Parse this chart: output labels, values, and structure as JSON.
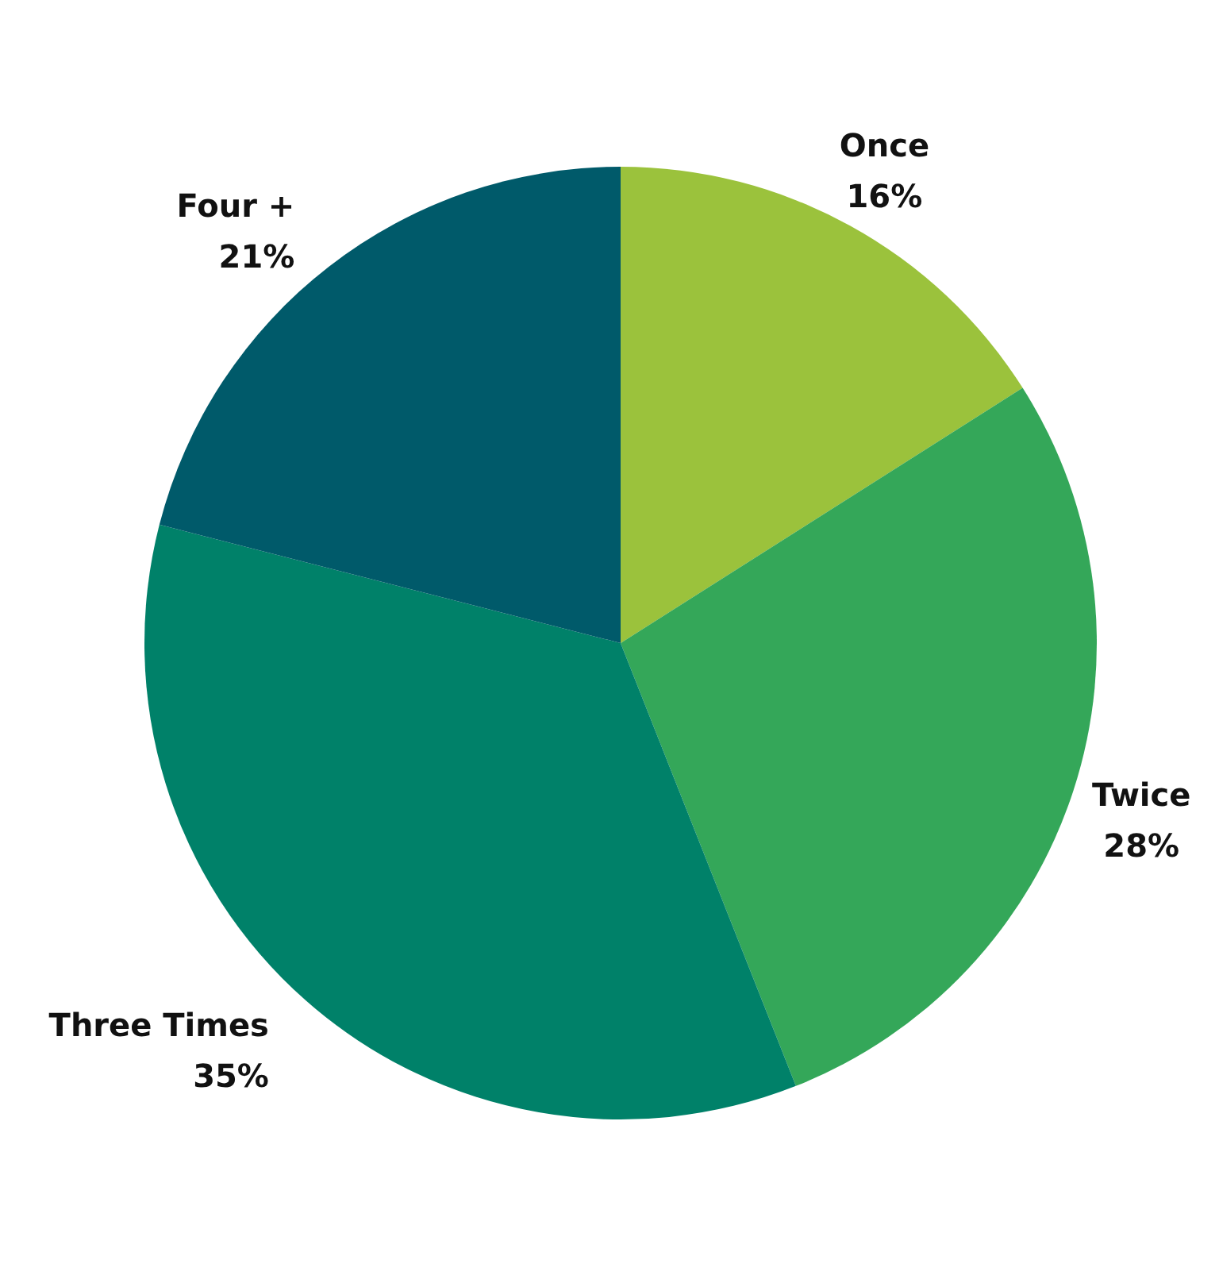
{
  "chart_data": {
    "type": "pie",
    "categories": [
      "Once",
      "Twice",
      "Three Times",
      "Four +"
    ],
    "values": [
      16,
      28,
      35,
      21
    ],
    "colors": [
      "#9bc23c",
      "#34a759",
      "#008169",
      "#005a6a"
    ],
    "value_labels": [
      "16%",
      "28%",
      "35%",
      "21%"
    ]
  }
}
